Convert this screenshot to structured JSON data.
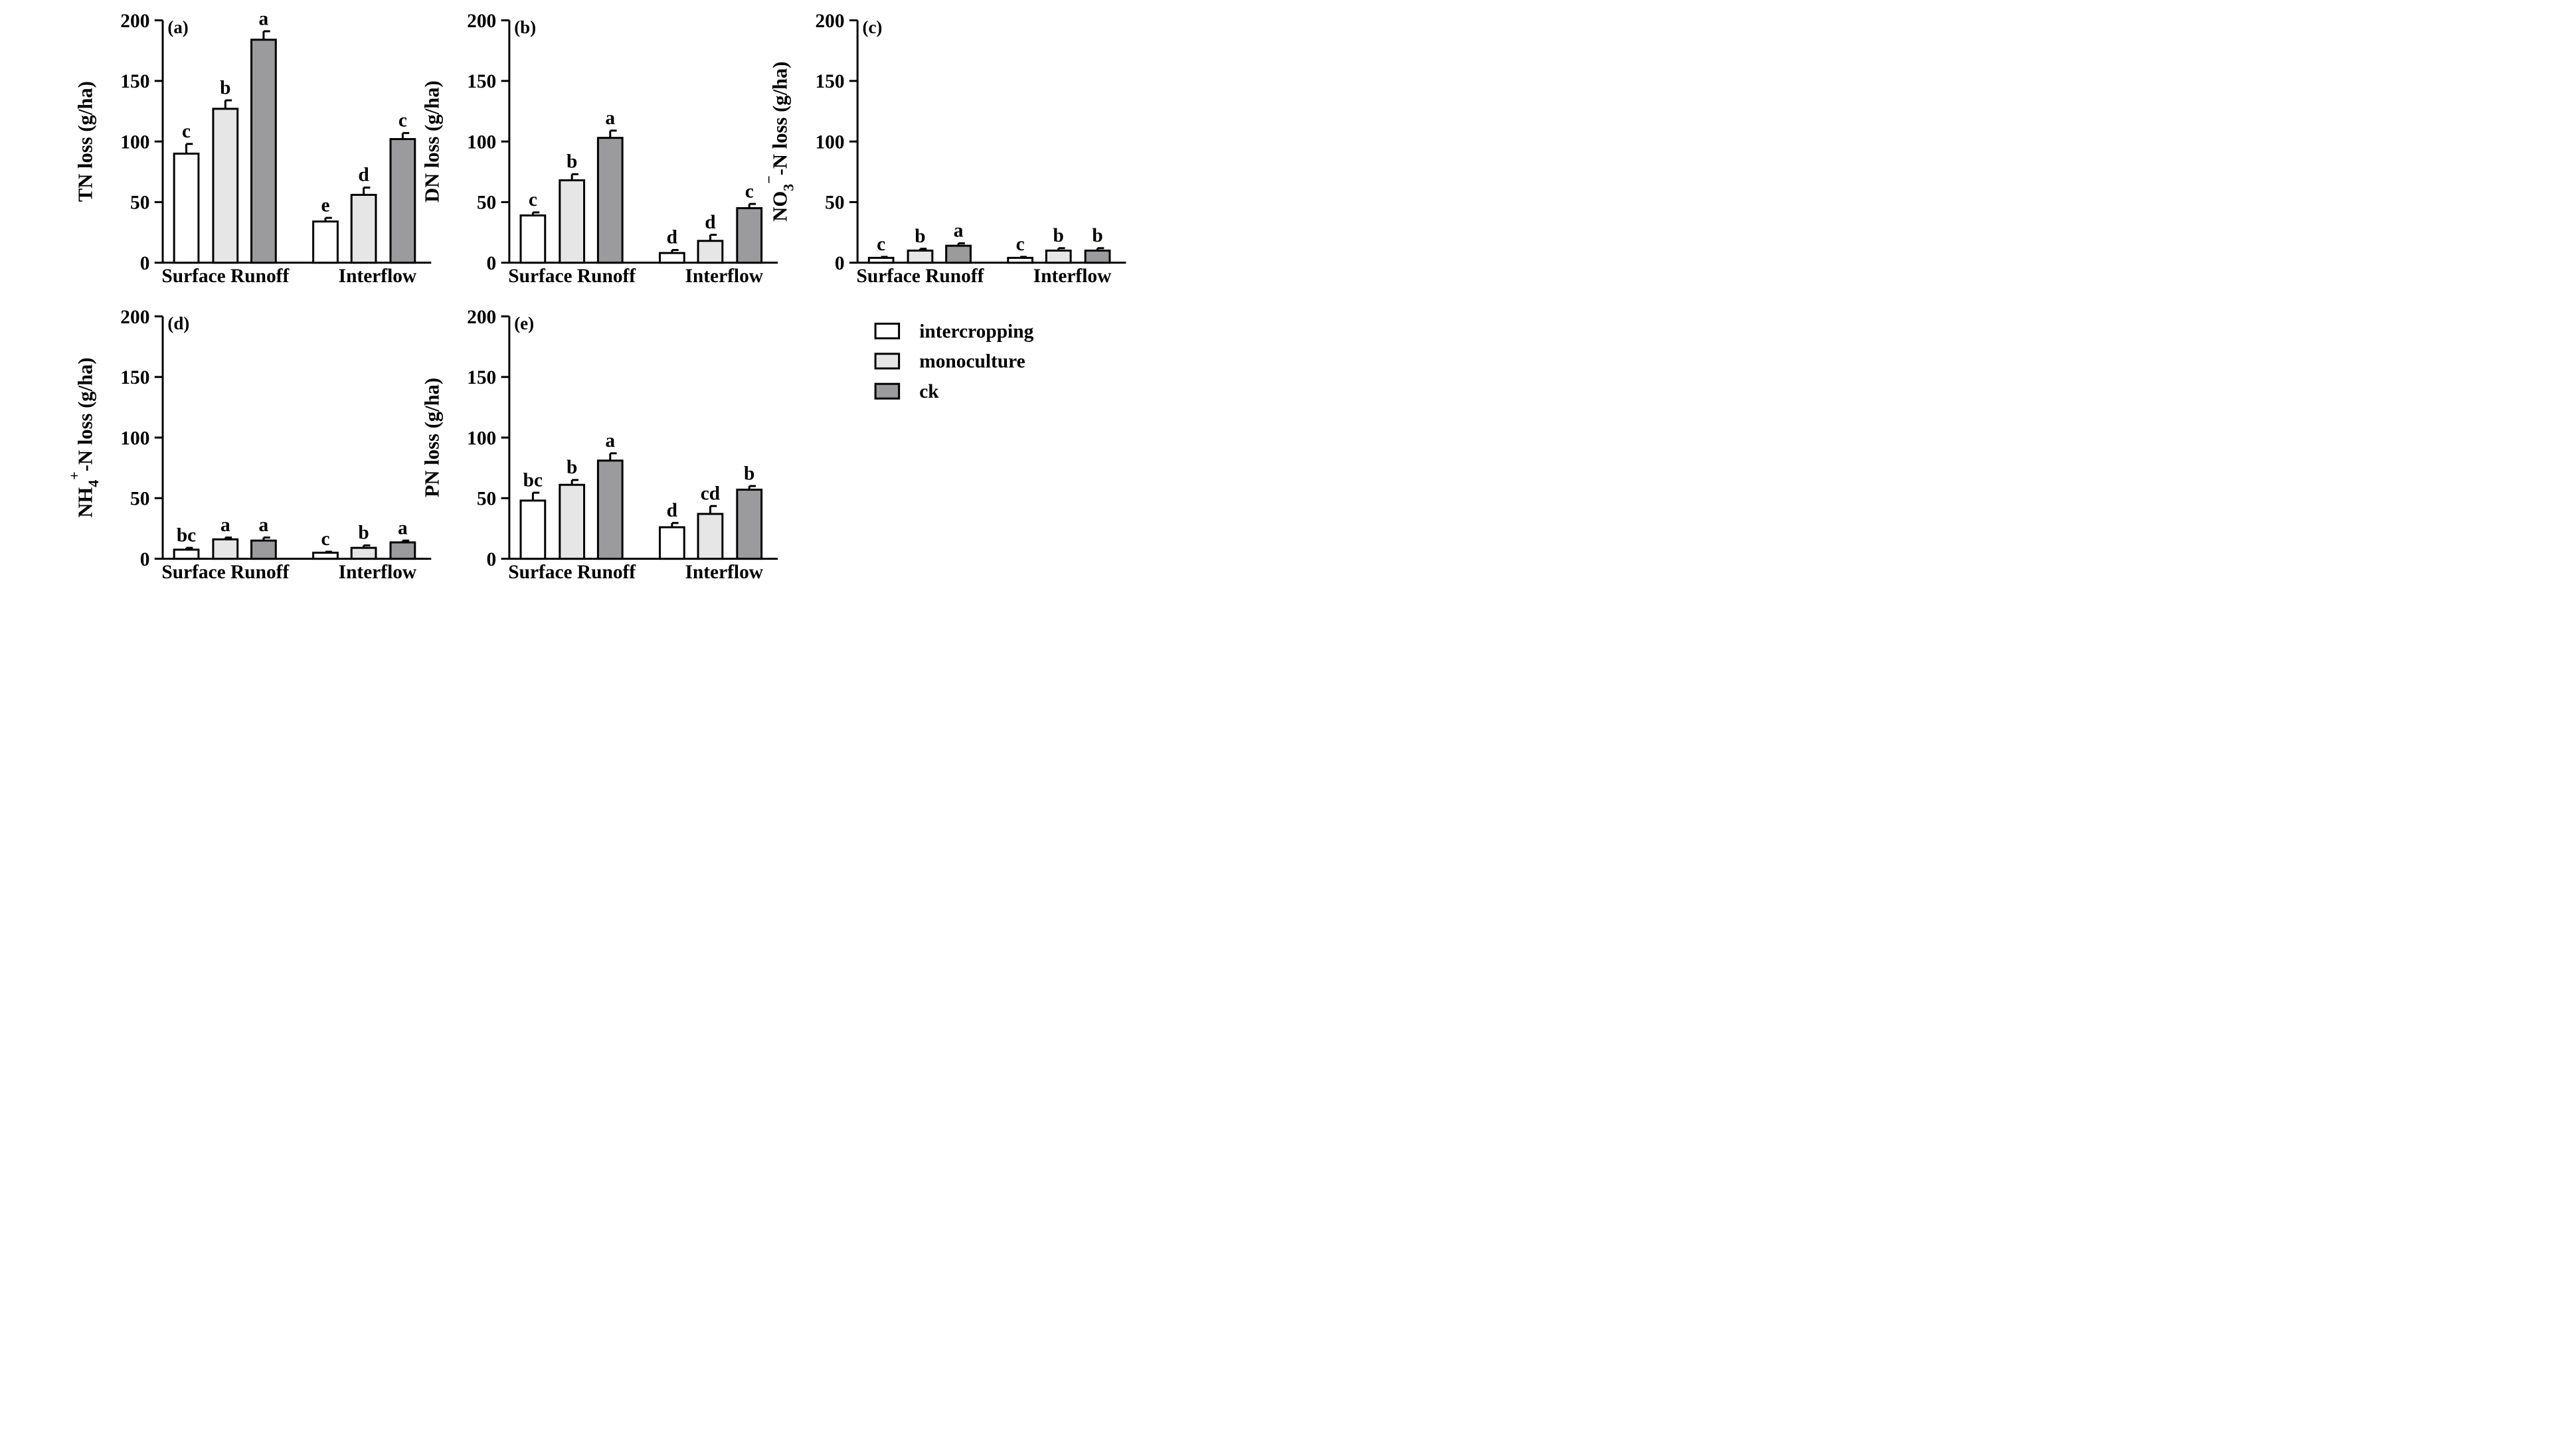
{
  "figure": {
    "legend": [
      {
        "label": "intercropping",
        "color": "#ffffff"
      },
      {
        "label": "monoculture",
        "color": "#e6e6e6"
      },
      {
        "label": "ck",
        "color": "#9b9b9e"
      }
    ],
    "ytick_labels": [
      "0",
      "50",
      "100",
      "150",
      "200"
    ]
  },
  "chart_data": [
    {
      "type": "bar",
      "panel": "(a)",
      "title": "",
      "xlabel": "",
      "ylabel": "TN loss (g/ha)",
      "categories": [
        "Surface Runoff",
        "Interflow"
      ],
      "ylim": [
        0,
        200
      ],
      "series": [
        {
          "name": "intercropping",
          "values": [
            90,
            34
          ],
          "errors": [
            8,
            3
          ],
          "letters": [
            "c",
            "e"
          ]
        },
        {
          "name": "monoculture",
          "values": [
            127,
            56
          ],
          "errors": [
            7,
            6
          ],
          "letters": [
            "b",
            "d"
          ]
        },
        {
          "name": "ck",
          "values": [
            184,
            102
          ],
          "errors": [
            7,
            5
          ],
          "letters": [
            "a",
            "c"
          ]
        }
      ]
    },
    {
      "type": "bar",
      "panel": "(b)",
      "title": "",
      "xlabel": "",
      "ylabel": "DN loss (g/ha)",
      "categories": [
        "Surface Runoff",
        "Interflow"
      ],
      "ylim": [
        0,
        200
      ],
      "series": [
        {
          "name": "intercropping",
          "values": [
            39,
            8
          ],
          "errors": [
            2.5,
            2.5
          ],
          "letters": [
            "c",
            "d"
          ]
        },
        {
          "name": "monoculture",
          "values": [
            68,
            18
          ],
          "errors": [
            5,
            5
          ],
          "letters": [
            "b",
            "d"
          ]
        },
        {
          "name": "ck",
          "values": [
            103,
            45
          ],
          "errors": [
            6,
            3.5
          ],
          "letters": [
            "a",
            "c"
          ]
        }
      ]
    },
    {
      "type": "bar",
      "panel": "(c)",
      "title": "",
      "xlabel": "",
      "ylabel": "NO3−-N loss (g/ha)",
      "ylabel_parts": {
        "main": "NO",
        "sub": "3",
        "sup": "−",
        "rest": "-N loss (g/ha)"
      },
      "categories": [
        "Surface Runoff",
        "Interflow"
      ],
      "ylim": [
        0,
        200
      ],
      "series": [
        {
          "name": "intercropping",
          "values": [
            4,
            4
          ],
          "errors": [
            0.8,
            0.8
          ],
          "letters": [
            "c",
            "c"
          ]
        },
        {
          "name": "monoculture",
          "values": [
            10,
            10
          ],
          "errors": [
            1.5,
            2
          ],
          "letters": [
            "b",
            "b"
          ]
        },
        {
          "name": "ck",
          "values": [
            14,
            10
          ],
          "errors": [
            2,
            2
          ],
          "letters": [
            "a",
            "b"
          ]
        }
      ]
    },
    {
      "type": "bar",
      "panel": "(d)",
      "title": "",
      "xlabel": "",
      "ylabel": "NH4+-N loss (g/ha)",
      "ylabel_parts": {
        "main": "NH",
        "sub": "4",
        "sup": "+",
        "rest": "-N loss (g/ha)"
      },
      "categories": [
        "Surface Runoff",
        "Interflow"
      ],
      "ylim": [
        0,
        200
      ],
      "series": [
        {
          "name": "intercropping",
          "values": [
            7.5,
            5
          ],
          "errors": [
            1.5,
            0.8
          ],
          "letters": [
            "bc",
            "c"
          ]
        },
        {
          "name": "monoculture",
          "values": [
            16,
            9
          ],
          "errors": [
            1.5,
            2
          ],
          "letters": [
            "a",
            "b"
          ]
        },
        {
          "name": "ck",
          "values": [
            15,
            13.5
          ],
          "errors": [
            2.5,
            1.5
          ],
          "letters": [
            "a",
            "a"
          ]
        }
      ]
    },
    {
      "type": "bar",
      "panel": "(e)",
      "title": "",
      "xlabel": "",
      "ylabel": "PN loss (g/ha)",
      "categories": [
        "Surface Runoff",
        "Interflow"
      ],
      "ylim": [
        0,
        200
      ],
      "series": [
        {
          "name": "intercropping",
          "values": [
            48,
            26
          ],
          "errors": [
            6.5,
            3.5
          ],
          "letters": [
            "bc",
            "d"
          ]
        },
        {
          "name": "monoculture",
          "values": [
            61,
            37
          ],
          "errors": [
            4,
            6.5
          ],
          "letters": [
            "b",
            "cd"
          ]
        },
        {
          "name": "ck",
          "values": [
            81,
            57
          ],
          "errors": [
            6,
            3
          ],
          "letters": [
            "a",
            "b"
          ]
        }
      ]
    }
  ]
}
